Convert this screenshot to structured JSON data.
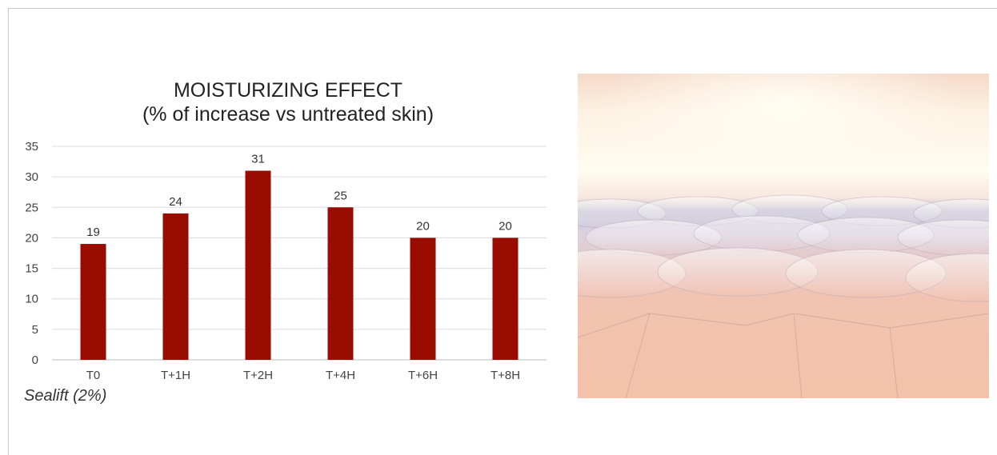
{
  "chart_title_line1": "MOISTURIZING EFFECT",
  "chart_title_line2": "(% of increase vs untreated skin)",
  "footnote": "Sealift (2%)",
  "chart_data": {
    "type": "bar",
    "title": "MOISTURIZING EFFECT (% of increase vs untreated skin)",
    "categories": [
      "T0",
      "T+1H",
      "T+2H",
      "T+4H",
      "T+6H",
      "T+8H"
    ],
    "values": [
      19,
      24,
      31,
      25,
      20,
      20
    ],
    "ylim": [
      0,
      35
    ],
    "yticks": [
      0,
      5,
      10,
      15,
      20,
      25,
      30,
      35
    ],
    "grid": true,
    "bar_color": "#9a0b00",
    "data_labels": true
  }
}
